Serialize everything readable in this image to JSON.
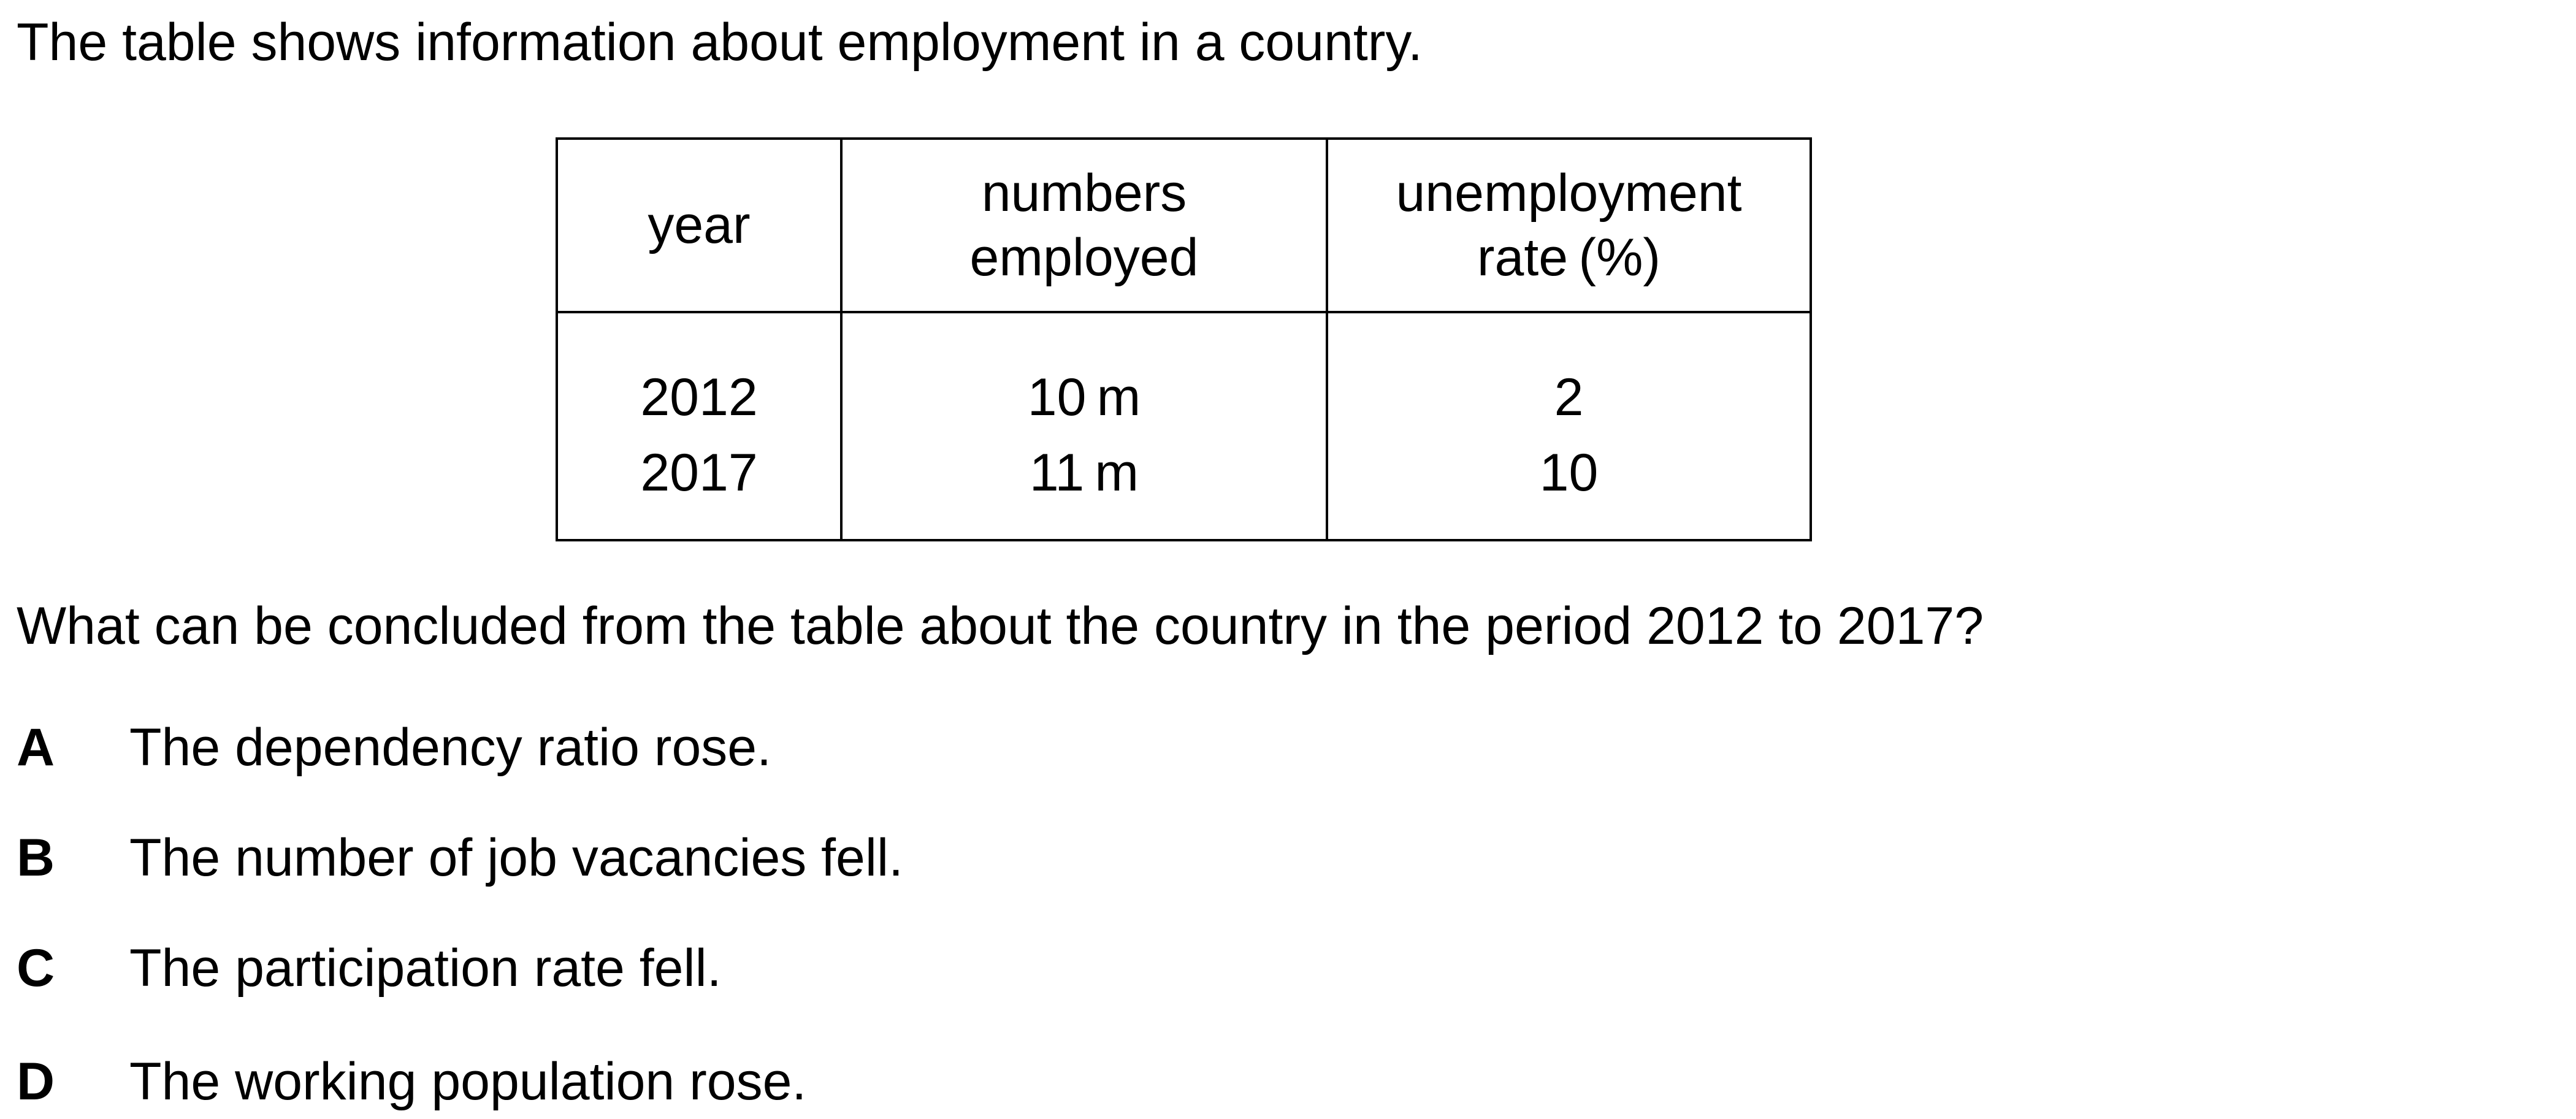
{
  "intro": "The table shows information about employment in a country.",
  "table": {
    "headers": {
      "year": "year",
      "numbers_line1": "numbers",
      "numbers_line2": "employed",
      "rate_line1": "unemployment",
      "rate_line2": "rate (%)"
    },
    "rows": [
      {
        "year": "2012",
        "employed": "10 m",
        "rate": "2"
      },
      {
        "year": "2017",
        "employed": "11 m",
        "rate": "10"
      }
    ]
  },
  "question": "What can be concluded from the table about the country in the period 2012 to 2017?",
  "options": [
    {
      "letter": "A",
      "text": "The dependency ratio rose."
    },
    {
      "letter": "B",
      "text": "The number of job vacancies fell."
    },
    {
      "letter": "C",
      "text": "The participation rate fell."
    },
    {
      "letter": "D",
      "text": "The working population rose."
    }
  ]
}
